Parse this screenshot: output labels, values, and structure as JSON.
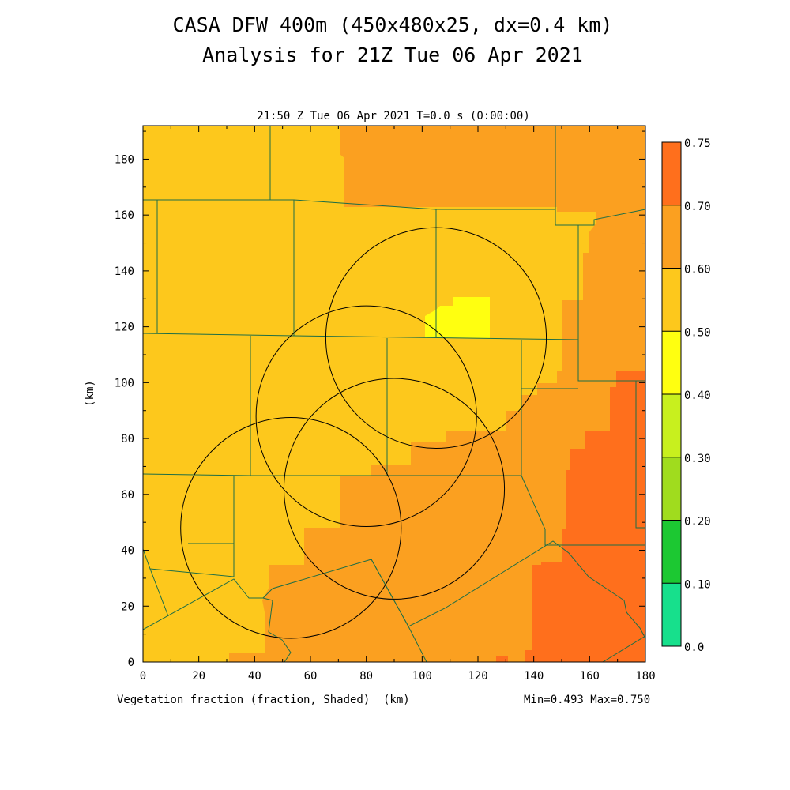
{
  "header": {
    "title_line1": "CASA DFW 400m (450x480x25, dx=0.4 km)",
    "title_line2": "Analysis for 21Z Tue 06 Apr 2021",
    "subtitle": "21:50 Z Tue 06 Apr 2021   T=0.0 s (0:00:00)"
  },
  "footer": {
    "field_label": "Vegetation fraction (fraction, Shaded)",
    "x_unit": "(km)",
    "minmax": "Min=0.493 Max=0.750"
  },
  "colors": {
    "c_040_050": "#ffff10",
    "c_050_060": "#fdc81c",
    "c_060_070": "#fba020",
    "c_070_075": "#ff6f1c",
    "boundary": "#1e6e46",
    "circle": "#000000"
  },
  "chart_data": {
    "type": "heatmap",
    "title": "CASA DFW 400m (450x480x25, dx=0.4 km)",
    "subtitle": "Analysis for 21Z Tue 06 Apr 2021",
    "xlabel": "(km)",
    "ylabel": "(km)",
    "xlim": [
      0,
      180
    ],
    "ylim": [
      0,
      192
    ],
    "x_ticks": [
      0,
      20,
      40,
      60,
      80,
      100,
      120,
      140,
      160,
      180
    ],
    "y_ticks": [
      0,
      20,
      40,
      60,
      80,
      100,
      120,
      140,
      160,
      180
    ],
    "x_tick_labels": [
      "0",
      "20",
      "40",
      "60",
      "80",
      "100",
      "120",
      "140",
      "160",
      "180"
    ],
    "y_tick_labels": [
      "0",
      "20",
      "40",
      "60",
      "80",
      "100",
      "120",
      "140",
      "160",
      "180"
    ],
    "colorbar": {
      "levels": [
        "0.0",
        "0.10",
        "0.20",
        "0.30",
        "0.40",
        "0.50",
        "0.60",
        "0.70",
        "0.75"
      ],
      "colors": [
        "#17e08c",
        "#1cc832",
        "#a0dc1e",
        "#c8f01e",
        "#ffff10",
        "#fdc81c",
        "#fba020",
        "#ff6f1c"
      ]
    },
    "field": "Vegetation fraction",
    "min": 0.493,
    "max": 0.75,
    "radar_circles": [
      {
        "center": [
          105,
          116
        ],
        "radius": 39.5
      },
      {
        "center": [
          80,
          88
        ],
        "radius": 39.5
      },
      {
        "center": [
          90,
          62
        ],
        "radius": 39.5
      },
      {
        "center": [
          53,
          48
        ],
        "radius": 39.5
      }
    ]
  }
}
